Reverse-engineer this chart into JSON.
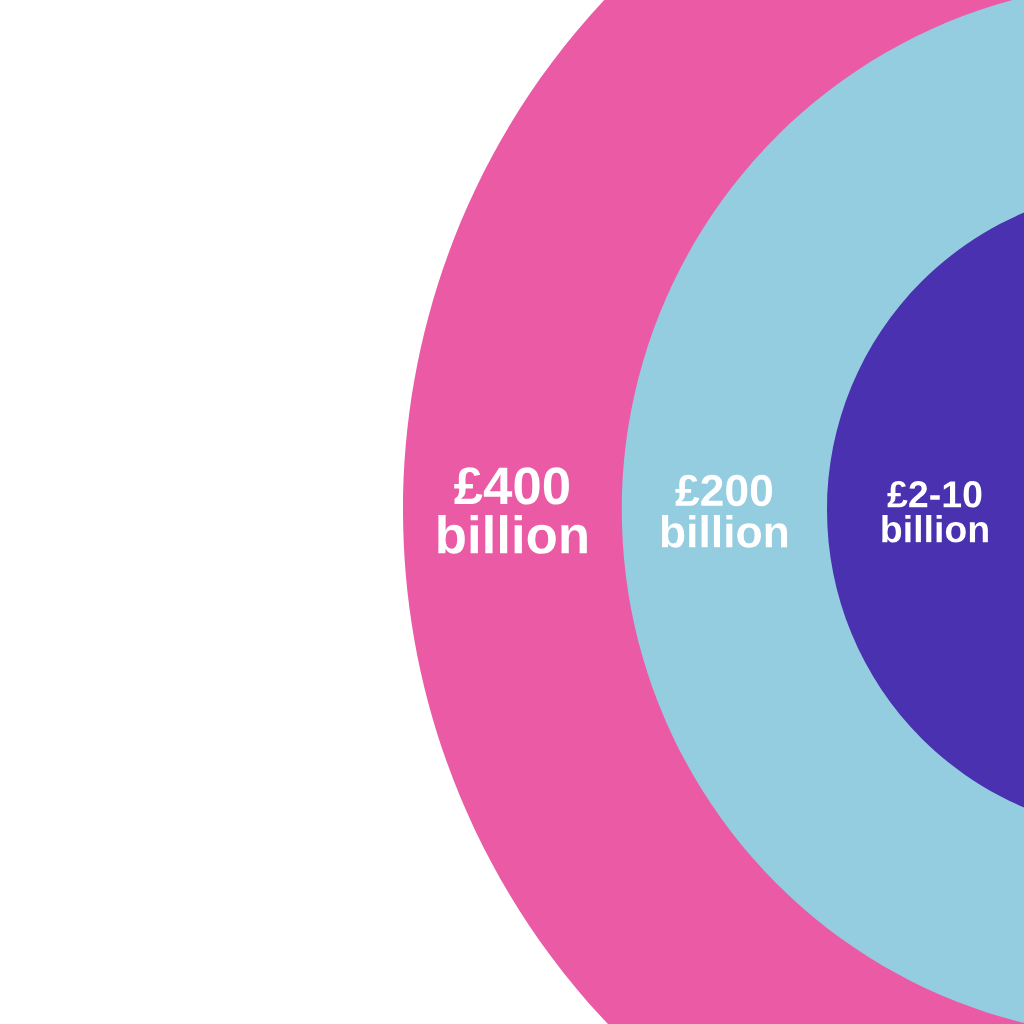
{
  "chart_data": {
    "type": "other",
    "categories": [
      null,
      null,
      null
    ],
    "values": [
      400,
      200,
      null
    ],
    "value_labels": [
      "£400 billion",
      "£200 billion",
      "£2-10 billion"
    ],
    "colors": [
      "#eb5ba5",
      "#94cce0",
      "#4931b0"
    ]
  }
}
